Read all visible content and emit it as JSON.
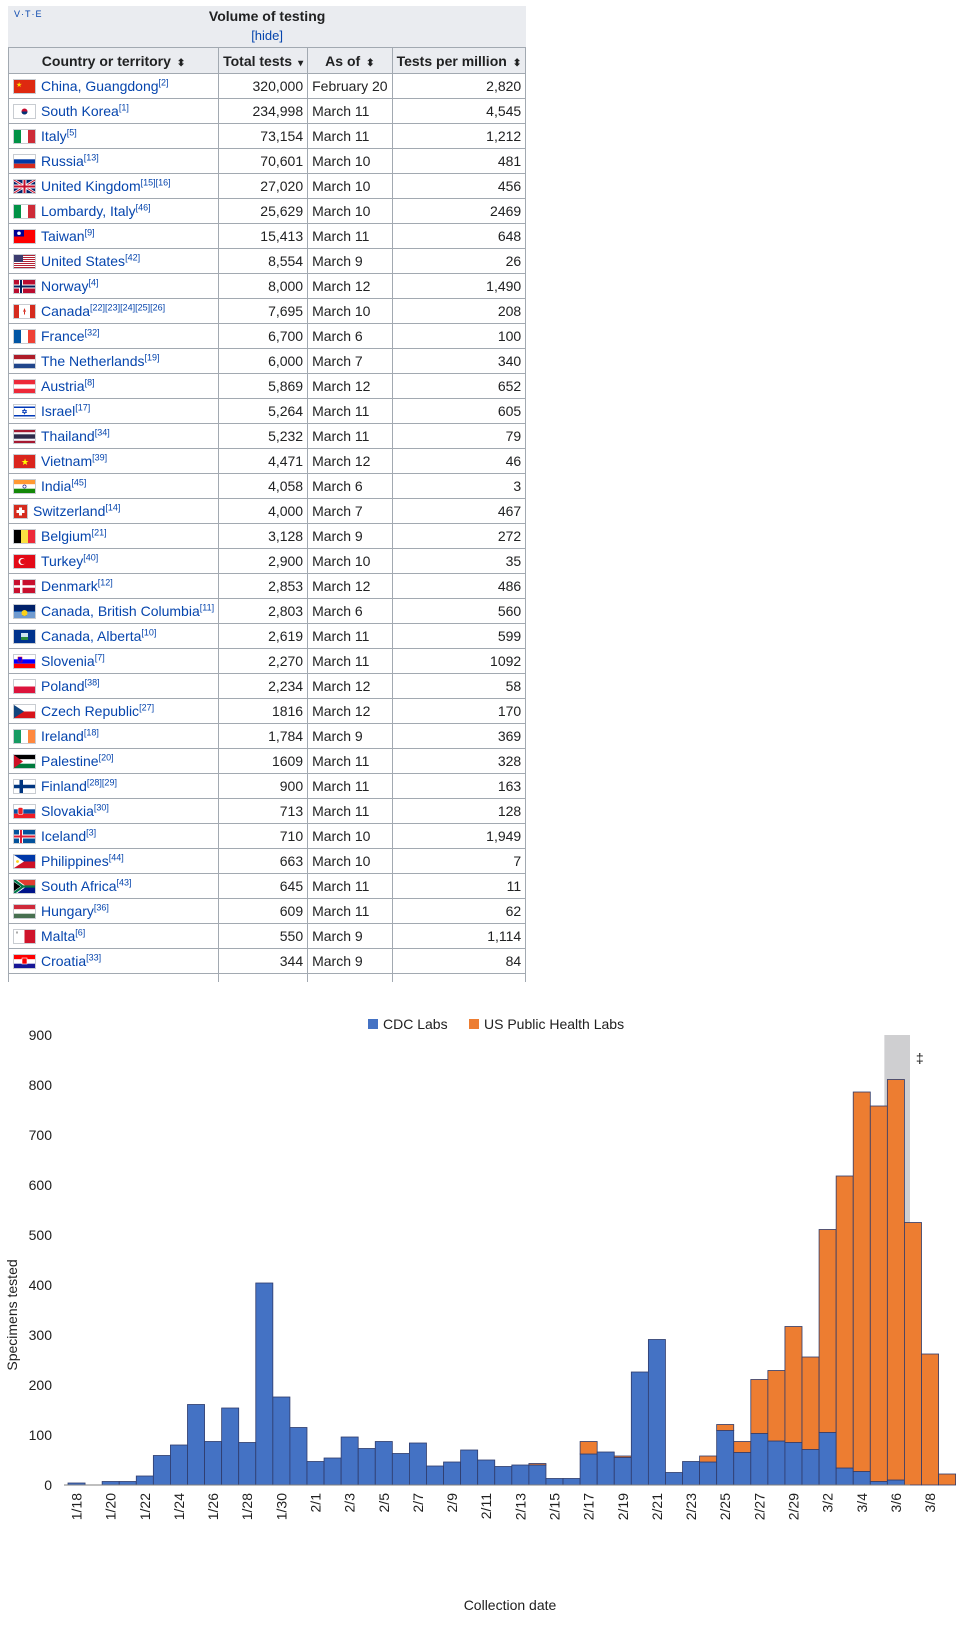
{
  "table": {
    "vte": "V·T·E",
    "title": "Volume of testing",
    "hide": "[hide]",
    "columns": [
      "Country or territory",
      "Total tests",
      "As of",
      "Tests per million"
    ],
    "sort_icons": [
      "⬍",
      "▾",
      "⬍",
      "⬍"
    ],
    "rows": [
      {
        "country": "China, Guangdong",
        "ref": "[2]",
        "total": "320,000",
        "asof": "February 20",
        "pm": "2,820",
        "flag": "cn"
      },
      {
        "country": "South Korea",
        "ref": "[1]",
        "total": "234,998",
        "asof": "March 11",
        "pm": "4,545",
        "flag": "kr"
      },
      {
        "country": "Italy",
        "ref": "[5]",
        "total": "73,154",
        "asof": "March 11",
        "pm": "1,212",
        "flag": "it"
      },
      {
        "country": "Russia",
        "ref": "[13]",
        "total": "70,601",
        "asof": "March 10",
        "pm": "481",
        "flag": "ru"
      },
      {
        "country": "United Kingdom",
        "ref": "[15][16]",
        "total": "27,020",
        "asof": "March 10",
        "pm": "456",
        "flag": "gb"
      },
      {
        "country": "Lombardy, Italy",
        "ref": "[46]",
        "total": "25,629",
        "asof": "March 10",
        "pm": "2469",
        "flag": "it"
      },
      {
        "country": "Taiwan",
        "ref": "[9]",
        "total": "15,413",
        "asof": "March 11",
        "pm": "648",
        "flag": "tw"
      },
      {
        "country": "United States",
        "ref": "[42]",
        "total": "8,554",
        "asof": "March 9",
        "pm": "26",
        "flag": "us"
      },
      {
        "country": "Norway",
        "ref": "[4]",
        "total": "8,000",
        "asof": "March 12",
        "pm": "1,490",
        "flag": "no"
      },
      {
        "country": "Canada",
        "ref": "[22][23][24][25][26]",
        "total": "7,695",
        "asof": "March 10",
        "pm": "208",
        "flag": "ca"
      },
      {
        "country": "France",
        "ref": "[32]",
        "total": "6,700",
        "asof": "March 6",
        "pm": "100",
        "flag": "fr"
      },
      {
        "country": "The Netherlands",
        "ref": "[19]",
        "total": "6,000",
        "asof": "March 7",
        "pm": "340",
        "flag": "nl"
      },
      {
        "country": "Austria",
        "ref": "[8]",
        "total": "5,869",
        "asof": "March 12",
        "pm": "652",
        "flag": "at"
      },
      {
        "country": "Israel",
        "ref": "[17]",
        "total": "5,264",
        "asof": "March 11",
        "pm": "605",
        "flag": "il"
      },
      {
        "country": "Thailand",
        "ref": "[34]",
        "total": "5,232",
        "asof": "March 11",
        "pm": "79",
        "flag": "th"
      },
      {
        "country": "Vietnam",
        "ref": "[39]",
        "total": "4,471",
        "asof": "March 12",
        "pm": "46",
        "flag": "vn"
      },
      {
        "country": "India",
        "ref": "[45]",
        "total": "4,058",
        "asof": "March 6",
        "pm": "3",
        "flag": "in"
      },
      {
        "country": "Switzerland",
        "ref": "[14]",
        "total": "4,000",
        "asof": "March 7",
        "pm": "467",
        "flag": "ch"
      },
      {
        "country": "Belgium",
        "ref": "[21]",
        "total": "3,128",
        "asof": "March 9",
        "pm": "272",
        "flag": "be"
      },
      {
        "country": "Turkey",
        "ref": "[40]",
        "total": "2,900",
        "asof": "March 10",
        "pm": "35",
        "flag": "tr"
      },
      {
        "country": "Denmark",
        "ref": "[12]",
        "total": "2,853",
        "asof": "March 12",
        "pm": "486",
        "flag": "dk"
      },
      {
        "country": "Canada, British Columbia",
        "ref": "[11]",
        "total": "2,803",
        "asof": "March 6",
        "pm": "560",
        "flag": "bc"
      },
      {
        "country": "Canada, Alberta",
        "ref": "[10]",
        "total": "2,619",
        "asof": "March 11",
        "pm": "599",
        "flag": "ab"
      },
      {
        "country": "Slovenia",
        "ref": "[7]",
        "total": "2,270",
        "asof": "March 11",
        "pm": "1092",
        "flag": "si"
      },
      {
        "country": "Poland",
        "ref": "[38]",
        "total": "2,234",
        "asof": "March 12",
        "pm": "58",
        "flag": "pl"
      },
      {
        "country": "Czech Republic",
        "ref": "[27]",
        "total": "1816",
        "asof": "March 12",
        "pm": "170",
        "flag": "cz"
      },
      {
        "country": "Ireland",
        "ref": "[18]",
        "total": "1,784",
        "asof": "March 9",
        "pm": "369",
        "flag": "ie"
      },
      {
        "country": "Palestine",
        "ref": "[20]",
        "total": "1609",
        "asof": "March 11",
        "pm": "328",
        "flag": "ps"
      },
      {
        "country": "Finland",
        "ref": "[28][29]",
        "total": "900",
        "asof": "March 11",
        "pm": "163",
        "flag": "fi"
      },
      {
        "country": "Slovakia",
        "ref": "[30]",
        "total": "713",
        "asof": "March 11",
        "pm": "128",
        "flag": "sk"
      },
      {
        "country": "Iceland",
        "ref": "[3]",
        "total": "710",
        "asof": "March 10",
        "pm": "1,949",
        "flag": "is"
      },
      {
        "country": "Philippines",
        "ref": "[44]",
        "total": "663",
        "asof": "March 10",
        "pm": "7",
        "flag": "ph"
      },
      {
        "country": "South Africa",
        "ref": "[43]",
        "total": "645",
        "asof": "March 11",
        "pm": "11",
        "flag": "za"
      },
      {
        "country": "Hungary",
        "ref": "[36]",
        "total": "609",
        "asof": "March 11",
        "pm": "62",
        "flag": "hu"
      },
      {
        "country": "Malta",
        "ref": "[6]",
        "total": "550",
        "asof": "March 9",
        "pm": "1,114",
        "flag": "mt"
      },
      {
        "country": "Croatia",
        "ref": "[33]",
        "total": "344",
        "asof": "March 9",
        "pm": "84",
        "flag": "hr"
      }
    ]
  },
  "chart_data": {
    "type": "bar",
    "stacked": true,
    "xlabel": "Collection date",
    "ylabel": "Specimens tested",
    "ylim": [
      0,
      900
    ],
    "yticks": [
      0,
      100,
      200,
      300,
      400,
      500,
      600,
      700,
      800,
      900
    ],
    "grid": false,
    "legend_position": "top",
    "shaded_region_label": "‡",
    "shaded_region_start": "3/6",
    "shaded_region_color": "#cfcfd1",
    "categories": [
      "1/18",
      "1/19",
      "1/20",
      "1/21",
      "1/22",
      "1/23",
      "1/24",
      "1/25",
      "1/26",
      "1/27",
      "1/28",
      "1/29",
      "1/30",
      "1/31",
      "2/1",
      "2/2",
      "2/3",
      "2/4",
      "2/5",
      "2/6",
      "2/7",
      "2/8",
      "2/9",
      "2/10",
      "2/11",
      "2/12",
      "2/13",
      "2/14",
      "2/15",
      "2/16",
      "2/17",
      "2/18",
      "2/19",
      "2/20",
      "2/21",
      "2/22",
      "2/23",
      "2/24",
      "2/25",
      "2/26",
      "2/27",
      "2/28",
      "2/29",
      "3/1",
      "3/2",
      "3/3",
      "3/4",
      "3/5",
      "3/6",
      "3/7",
      "3/8",
      "3/9"
    ],
    "tick_labels": [
      "1/18",
      "1/20",
      "1/22",
      "1/24",
      "1/26",
      "1/28",
      "1/30",
      "2/1",
      "2/3",
      "2/5",
      "2/7",
      "2/9",
      "2/11",
      "2/13",
      "2/15",
      "2/17",
      "2/19",
      "2/21",
      "2/23",
      "2/25",
      "2/27",
      "2/29",
      "3/2",
      "3/4",
      "3/6",
      "3/8"
    ],
    "series": [
      {
        "name": "CDC Labs",
        "color": "#4472c4",
        "values": [
          4,
          0,
          7,
          7,
          18,
          59,
          80,
          161,
          87,
          154,
          85,
          404,
          176,
          115,
          47,
          54,
          96,
          73,
          87,
          63,
          84,
          38,
          46,
          70,
          50,
          37,
          40,
          40,
          13,
          13,
          62,
          66,
          55,
          226,
          291,
          25,
          47,
          46,
          109,
          65,
          103,
          88,
          85,
          71,
          105,
          34,
          27,
          7,
          10,
          0,
          0,
          0
        ]
      },
      {
        "name": "US Public Health Labs",
        "color": "#ed7d31",
        "values": [
          0,
          0,
          0,
          0,
          0,
          0,
          0,
          0,
          0,
          0,
          0,
          0,
          0,
          0,
          0,
          0,
          0,
          0,
          0,
          0,
          0,
          0,
          0,
          0,
          0,
          0,
          0,
          3,
          0,
          0,
          25,
          0,
          3,
          0,
          0,
          0,
          0,
          12,
          12,
          22,
          108,
          141,
          232,
          185,
          406,
          584,
          759,
          751,
          801,
          525,
          262,
          22
        ]
      }
    ]
  }
}
